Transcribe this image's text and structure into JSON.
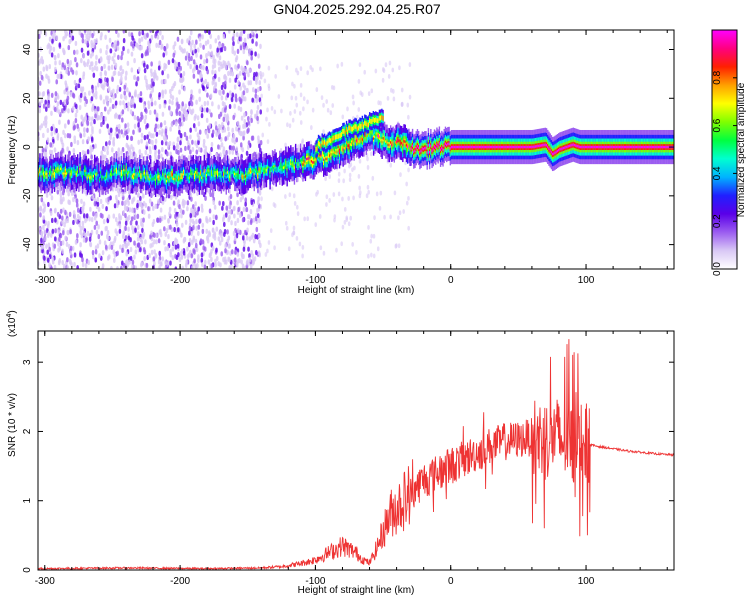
{
  "title": "GN04.2025.292.04.25.R07",
  "chart_data": [
    {
      "type": "heatmap",
      "xlabel": "Height of straight line (km)",
      "ylabel": "Frequency (Hz)",
      "xlim": [
        -305,
        165
      ],
      "ylim": [
        -50,
        48
      ],
      "xticks": [
        -300,
        -200,
        -100,
        0,
        100
      ],
      "yticks": [
        -40,
        -20,
        0,
        20,
        40
      ],
      "colorbar": {
        "label": "Normalized spectral amplitude",
        "range": [
          0,
          1
        ],
        "ticks": [
          "0.0",
          "0.2",
          "0.4",
          "0.6",
          "0.8"
        ],
        "tick_values": [
          0,
          0.2,
          0.4,
          0.6,
          0.8
        ],
        "colors": [
          "#ffffff",
          "#d9c8f5",
          "#9b5cf0",
          "#5a00e8",
          "#2020ff",
          "#00b4ff",
          "#00ffd0",
          "#00ff40",
          "#80ff00",
          "#ffff00",
          "#ffa000",
          "#ff2000",
          "#ff0080",
          "#ff00ff"
        ]
      },
      "ridge": {
        "x": [
          -305,
          -280,
          -260,
          -240,
          -220,
          -200,
          -180,
          -160,
          -150,
          -140,
          -130,
          -120,
          -110,
          -100,
          -90,
          -80,
          -70,
          -60,
          -55,
          -50,
          -45,
          -40,
          -35,
          -30,
          -25,
          -20,
          -10,
          0,
          20,
          40,
          60,
          70,
          75,
          80,
          85,
          90,
          95,
          100,
          130,
          165
        ],
        "y": [
          -11,
          -10,
          -12,
          -10,
          -13,
          -12,
          -11,
          -11,
          -11,
          -10,
          -9,
          -8,
          -6,
          -5,
          -3,
          0,
          3,
          5,
          4,
          3,
          2,
          2,
          1,
          0,
          -1,
          -1,
          0,
          0,
          0,
          0,
          0,
          1,
          -3,
          -1,
          0,
          1,
          0,
          0,
          0,
          0
        ]
      },
      "upper_branch": {
        "x": [
          -100,
          -90,
          -80,
          -70,
          -60,
          -55,
          -50
        ],
        "y": [
          0,
          3,
          6,
          8,
          10,
          11,
          12
        ]
      }
    },
    {
      "type": "line",
      "xlabel": "Height of straight line (km)",
      "ylabel": "SNR (10 * v/v)",
      "multiplier": "(x10",
      "multiplier_exp": "4",
      "multiplier_close": ")",
      "color": "#ee3333",
      "xlim": [
        -305,
        165
      ],
      "ylim": [
        0,
        3.45
      ],
      "xticks": [
        -300,
        -200,
        -100,
        0,
        100
      ],
      "yticks": [
        0,
        1,
        2,
        3
      ],
      "envelope": {
        "x": [
          -305,
          -240,
          -180,
          -140,
          -125,
          -115,
          -105,
          -100,
          -95,
          -90,
          -85,
          -80,
          -75,
          -70,
          -65,
          -60,
          -55,
          -50,
          -45,
          -40,
          -35,
          -30,
          -25,
          -20,
          -15,
          -10,
          -5,
          0,
          5,
          10,
          15,
          20,
          25,
          30,
          35,
          40,
          45,
          50,
          55,
          60,
          65,
          70,
          75,
          80,
          85,
          90,
          95,
          100,
          105,
          110,
          120,
          130,
          140,
          150,
          165
        ],
        "y": [
          0.02,
          0.03,
          0.02,
          0.03,
          0.05,
          0.08,
          0.12,
          0.15,
          0.2,
          0.25,
          0.3,
          0.35,
          0.3,
          0.25,
          0.15,
          0.1,
          0.3,
          0.55,
          0.8,
          0.9,
          1.0,
          1.1,
          1.2,
          1.3,
          1.35,
          1.4,
          1.45,
          1.5,
          1.55,
          1.6,
          1.65,
          1.7,
          1.75,
          1.8,
          1.82,
          1.85,
          1.87,
          1.88,
          1.9,
          1.92,
          1.9,
          1.9,
          1.95,
          1.9,
          1.85,
          1.85,
          1.85,
          1.82,
          1.8,
          1.78,
          1.75,
          1.72,
          1.7,
          1.68,
          1.66
        ]
      }
    }
  ]
}
